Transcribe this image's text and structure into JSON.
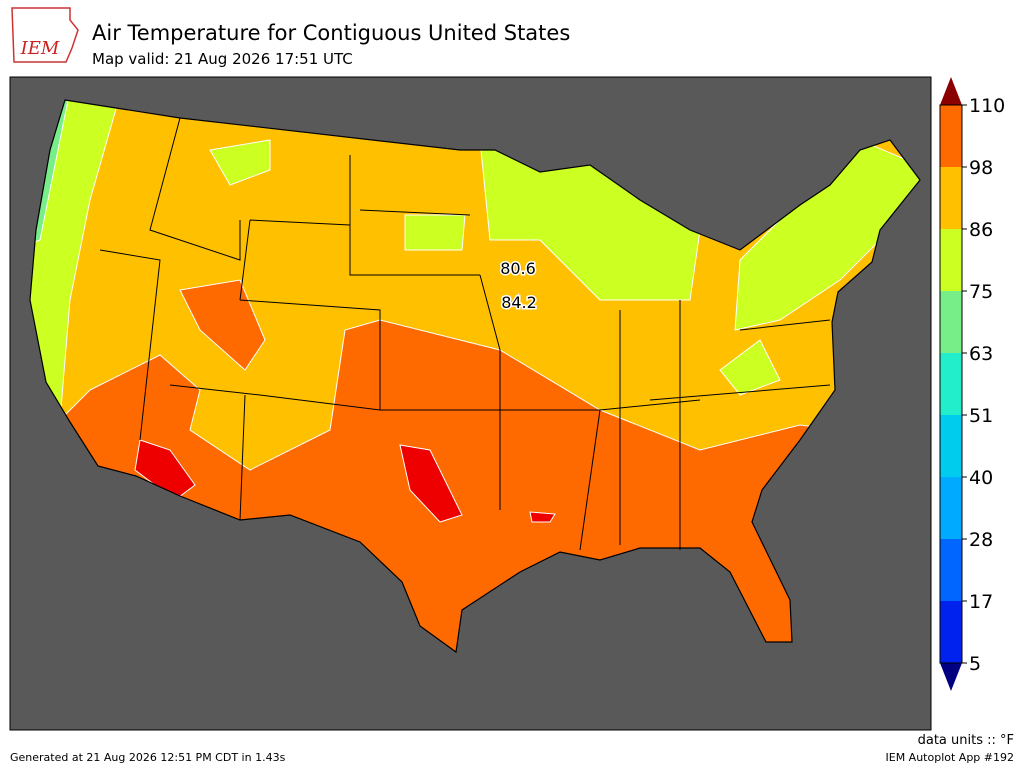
{
  "header": {
    "logo": "IEM",
    "title": "Air Temperature for Contiguous United States",
    "subtitle": "Map valid: 21 Aug 2026 17:51 UTC"
  },
  "map": {
    "station_values": [
      80.6,
      84.2
    ]
  },
  "colorbar": {
    "ticks": [
      5,
      17,
      28,
      40,
      51,
      63,
      75,
      86,
      98,
      110
    ],
    "colors": [
      "#0022ee",
      "#0066ff",
      "#00aaff",
      "#00ccee",
      "#22eecc",
      "#77ee88",
      "#ccff22",
      "#ffc000",
      "#ff6a00",
      "#ee0000"
    ],
    "under_color": "#000080",
    "over_color": "#8b0000",
    "units": "data units :: °F"
  },
  "footer": {
    "generated": "Generated at 21 Aug 2026 12:51 PM CDT in 1.43s",
    "app": "IEM Autoplot App #192"
  }
}
